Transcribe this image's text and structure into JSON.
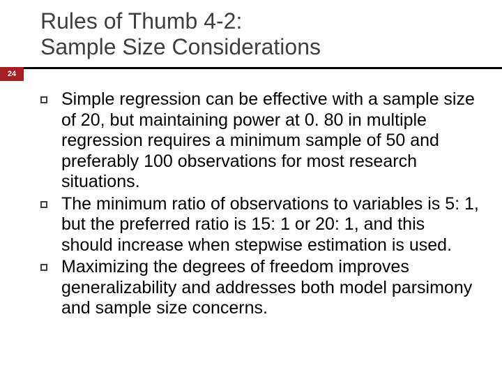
{
  "slide": {
    "page_number": "24",
    "title_line1": "Rules of Thumb 4-2:",
    "title_line2": "Sample Size Considerations",
    "bullets": [
      "Simple regression can be effective with a sample size of 20, but maintaining power at 0. 80 in multiple regression requires a minimum sample of 50 and preferably 100 observations for most research situations.",
      "The minimum ratio of observations to variables is 5: 1, but the preferred ratio is 15: 1 or 20: 1, and this should increase when stepwise estimation is used.",
      "Maximizing the degrees of freedom improves generalizability and addresses both model parsimony and sample size concerns."
    ],
    "colors": {
      "badge_bg": "#a31f23",
      "badge_text": "#ffffff",
      "title_text": "#3f3f3f",
      "body_text": "#000000",
      "accent_line": "#000000",
      "bullet_border": "#3f3f3f",
      "background": "#ffffff"
    },
    "typography": {
      "title_fontsize": 32,
      "body_fontsize": 25,
      "badge_fontsize": 11
    }
  }
}
